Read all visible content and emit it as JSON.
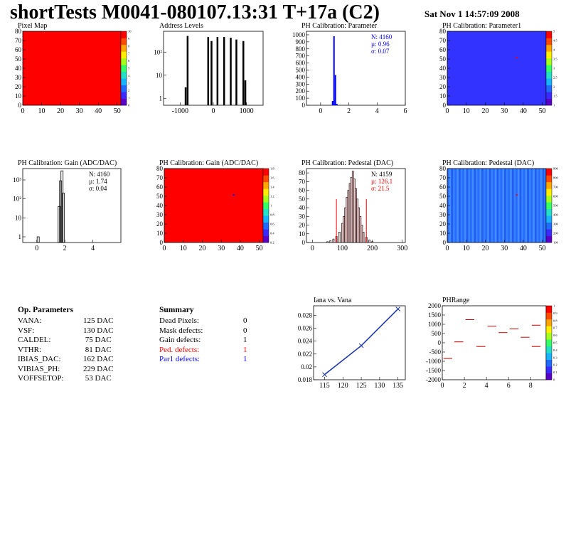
{
  "header": {
    "title": "shortTests M0041-080107.13:31 T+17a (C2)",
    "date": "Sat Nov  1 14:57:09 2008"
  },
  "panels": {
    "pixel_map": {
      "title": "Pixel Map"
    },
    "address_levels": {
      "title": "Address Levels"
    },
    "ph_parameter": {
      "title": "PH Calibration: Parameter"
    },
    "ph_parameter1": {
      "title": "PH Calibration: Parameter1"
    },
    "gain_hist": {
      "title": "PH Calibration: Gain (ADC/DAC)"
    },
    "gain_map": {
      "title": "PH Calibration: Gain (ADC/DAC)"
    },
    "pedestal_hist": {
      "title": "PH Calibration: Pedestal (DAC)"
    },
    "pedestal_map": {
      "title": "PH Calibration: Pedestal (DAC)"
    },
    "iana_vana": {
      "title": "Iana vs. Vana"
    },
    "phrange": {
      "title": "PHRange"
    }
  },
  "stats": {
    "ph_parameter": {
      "n": "N: 4160",
      "mu": "µ: 0.96",
      "sigma": "σ: 0.07"
    },
    "gain": {
      "n": "N: 4160",
      "mu": "µ: 1.74",
      "sigma": "σ: 0.04"
    },
    "pedestal": {
      "n": "N: 4159",
      "mu": "µ: 126.1",
      "sigma": "σ: 21.5"
    }
  },
  "op_parameters": {
    "title": "Op. Parameters",
    "rows": [
      {
        "name": "VANA:",
        "value": "125 DAC"
      },
      {
        "name": "VSF:",
        "value": "130 DAC"
      },
      {
        "name": "CALDEL:",
        "value": " 75 DAC"
      },
      {
        "name": "VTHR:",
        "value": " 81 DAC"
      },
      {
        "name": "IBIAS_DAC:",
        "value": "162 DAC"
      },
      {
        "name": "VIBIAS_PH:",
        "value": "229 DAC"
      },
      {
        "name": "VOFFSETOP:",
        "value": " 53 DAC"
      }
    ]
  },
  "summary": {
    "title": "Summary",
    "rows": [
      {
        "name": "Dead Pixels:",
        "value": "0",
        "color": "#000000"
      },
      {
        "name": "Mask defects:",
        "value": "0",
        "color": "#000000"
      },
      {
        "name": "Gain defects:",
        "value": "1",
        "color": "#000000"
      },
      {
        "name": "Ped. defects:",
        "value": "1",
        "color": "#ff0000"
      },
      {
        "name": "Par1 defects:",
        "value": "1",
        "color": "#0000ff"
      }
    ]
  },
  "chart_data": [
    {
      "id": "pixel_map",
      "type": "heatmap",
      "title": "Pixel Map",
      "xlim": [
        0,
        52
      ],
      "ylim": [
        0,
        80
      ],
      "xticks": [
        "0",
        "10",
        "20",
        "30",
        "40",
        "50"
      ],
      "yticks": [
        "0",
        "10",
        "20",
        "30",
        "40",
        "50",
        "60",
        "70",
        "80"
      ],
      "fill": "#ff0000",
      "palette_ticks": [
        "0",
        "1",
        "2",
        "3",
        "4",
        "5",
        "6",
        "7",
        "8",
        "9",
        "10"
      ]
    },
    {
      "id": "address_levels",
      "type": "bar",
      "title": "Address Levels",
      "xlim": [
        -1500,
        1500
      ],
      "log_y": true,
      "xticks": [
        "-1000",
        "0",
        "1000"
      ],
      "yticks": [
        "1",
        "10",
        "10²"
      ],
      "peaks": [
        {
          "x": -840,
          "y": 3
        },
        {
          "x": -780,
          "y": 500
        },
        {
          "x": -160,
          "y": 450
        },
        {
          "x": -60,
          "y": 300
        },
        {
          "x": 120,
          "y": 450
        },
        {
          "x": 320,
          "y": 450
        },
        {
          "x": 520,
          "y": 420
        },
        {
          "x": 690,
          "y": 350
        },
        {
          "x": 900,
          "y": 300
        },
        {
          "x": 960,
          "y": 6
        }
      ]
    },
    {
      "id": "ph_parameter",
      "type": "bar",
      "title": "PH Calibration: Parameter",
      "xlim": [
        -1,
        6
      ],
      "ylim": [
        0,
        1050
      ],
      "xticks": [
        "0",
        "2",
        "4",
        "6"
      ],
      "yticks": [
        "0",
        "100",
        "200",
        "300",
        "400",
        "500",
        "600",
        "700",
        "800",
        "900",
        "1000"
      ],
      "bins": [
        {
          "x": 0.85,
          "y": 60
        },
        {
          "x": 0.95,
          "y": 980
        },
        {
          "x": 1.05,
          "y": 430
        },
        {
          "x": 1.15,
          "y": 20
        }
      ]
    },
    {
      "id": "ph_parameter1",
      "type": "heatmap",
      "title": "PH Calibration: Parameter1",
      "xlim": [
        0,
        52
      ],
      "ylim": [
        0,
        80
      ],
      "xticks": [
        "0",
        "10",
        "20",
        "30",
        "40",
        "50"
      ],
      "yticks": [
        "0",
        "10",
        "20",
        "30",
        "40",
        "50",
        "60",
        "70",
        "80"
      ],
      "fill": "#3333ff",
      "hot_pixels": [
        {
          "x": 36,
          "y": 52
        }
      ],
      "palette_ticks": [
        "1",
        "1.5",
        "2",
        "2.5",
        "3",
        "3.5",
        "4",
        "4.5",
        "5"
      ]
    },
    {
      "id": "gain_hist",
      "type": "bar",
      "title": "PH Calibration: Gain (ADC/DAC)",
      "xlim": [
        -1,
        6
      ],
      "log_y": true,
      "xticks": [
        "0",
        "2",
        "4"
      ],
      "yticks": [
        "1",
        "10",
        "10²",
        "10³"
      ],
      "bins": [
        {
          "x": 0.1,
          "y": 1
        },
        {
          "x": 1.6,
          "y": 40
        },
        {
          "x": 1.7,
          "y": 900
        },
        {
          "x": 1.8,
          "y": 3000
        },
        {
          "x": 1.9,
          "y": 200
        }
      ]
    },
    {
      "id": "gain_map",
      "type": "heatmap",
      "title": "PH Calibration: Gain (ADC/DAC)",
      "xlim": [
        0,
        52
      ],
      "ylim": [
        0,
        80
      ],
      "xticks": [
        "0",
        "10",
        "20",
        "30",
        "40",
        "50"
      ],
      "yticks": [
        "0",
        "10",
        "20",
        "30",
        "40",
        "50",
        "60",
        "70",
        "80"
      ],
      "fill": "#ff0000",
      "hot_pixels": [
        {
          "x": 36,
          "y": 52
        }
      ],
      "palette_ticks": [
        "0.2",
        "0.4",
        "0.6",
        "0.8",
        "1",
        "1.2",
        "1.4",
        "1.6",
        "1.8"
      ]
    },
    {
      "id": "pedestal_hist",
      "type": "bar",
      "title": "PH Calibration: Pedestal (DAC)",
      "xlim": [
        -20,
        310
      ],
      "ylim": [
        0,
        85
      ],
      "xticks": [
        "0",
        "100",
        "200",
        "300"
      ],
      "yticks": [
        "0",
        "10",
        "20",
        "30",
        "40",
        "50",
        "60",
        "70",
        "80"
      ],
      "bins": [
        {
          "x": 50,
          "y": 1
        },
        {
          "x": 60,
          "y": 2
        },
        {
          "x": 70,
          "y": 4
        },
        {
          "x": 80,
          "y": 7
        },
        {
          "x": 90,
          "y": 12
        },
        {
          "x": 100,
          "y": 22
        },
        {
          "x": 105,
          "y": 30
        },
        {
          "x": 110,
          "y": 40
        },
        {
          "x": 115,
          "y": 52
        },
        {
          "x": 120,
          "y": 60
        },
        {
          "x": 125,
          "y": 68
        },
        {
          "x": 130,
          "y": 75
        },
        {
          "x": 135,
          "y": 82
        },
        {
          "x": 140,
          "y": 73
        },
        {
          "x": 145,
          "y": 62
        },
        {
          "x": 150,
          "y": 50
        },
        {
          "x": 155,
          "y": 40
        },
        {
          "x": 160,
          "y": 30
        },
        {
          "x": 165,
          "y": 20
        },
        {
          "x": 170,
          "y": 12
        },
        {
          "x": 180,
          "y": 6
        },
        {
          "x": 190,
          "y": 3
        },
        {
          "x": 200,
          "y": 1
        }
      ],
      "red_lines": [
        {
          "x": 80,
          "y": 50
        },
        {
          "x": 180,
          "y": 50
        }
      ]
    },
    {
      "id": "pedestal_map",
      "type": "heatmap",
      "title": "PH Calibration: Pedestal (DAC)",
      "xlim": [
        0,
        52
      ],
      "ylim": [
        0,
        80
      ],
      "xticks": [
        "0",
        "10",
        "20",
        "30",
        "40",
        "50"
      ],
      "yticks": [
        "0",
        "10",
        "20",
        "30",
        "40",
        "50",
        "60",
        "70",
        "80"
      ],
      "fill": "#2a6bff",
      "hot_pixels": [
        {
          "x": 36,
          "y": 52
        }
      ],
      "palette_ticks": [
        "100",
        "200",
        "300",
        "400",
        "500",
        "600",
        "700",
        "800",
        "900"
      ]
    },
    {
      "id": "iana_vana",
      "type": "line",
      "title": "Iana vs. Vana",
      "xlim": [
        112,
        137
      ],
      "ylim": [
        0.018,
        0.0295
      ],
      "xticks": [
        "115",
        "120",
        "125",
        "130",
        "135"
      ],
      "yticks": [
        "0.018",
        "0.02",
        "0.022",
        "0.024",
        "0.026",
        "0.028"
      ],
      "series": [
        {
          "x": [
            115,
            125,
            135
          ],
          "y": [
            0.0188,
            0.0233,
            0.029
          ]
        }
      ]
    },
    {
      "id": "phrange",
      "type": "scatter",
      "title": "PHRange",
      "xlim": [
        0,
        9.4
      ],
      "ylim": [
        -2000,
        2000
      ],
      "xticks": [
        "0",
        "2",
        "4",
        "6",
        "8"
      ],
      "yticks": [
        "-2000",
        "-1500",
        "-1000",
        "-500",
        "0",
        "500",
        "1000",
        "1500",
        "2000"
      ],
      "segments": [
        {
          "x": 0.5,
          "y": -850
        },
        {
          "x": 1.5,
          "y": 50
        },
        {
          "x": 2.5,
          "y": 1250
        },
        {
          "x": 3.5,
          "y": -200
        },
        {
          "x": 4.5,
          "y": 900
        },
        {
          "x": 5.5,
          "y": 550
        },
        {
          "x": 6.5,
          "y": 750
        },
        {
          "x": 7.5,
          "y": 300
        },
        {
          "x": 8.5,
          "y": 950
        },
        {
          "x": 8.5,
          "y": -200
        }
      ],
      "palette_ticks": [
        "0",
        "0.1",
        "0.2",
        "0.3",
        "0.4",
        "0.5",
        "0.6",
        "0.7",
        "0.8",
        "0.9",
        "1"
      ]
    }
  ]
}
